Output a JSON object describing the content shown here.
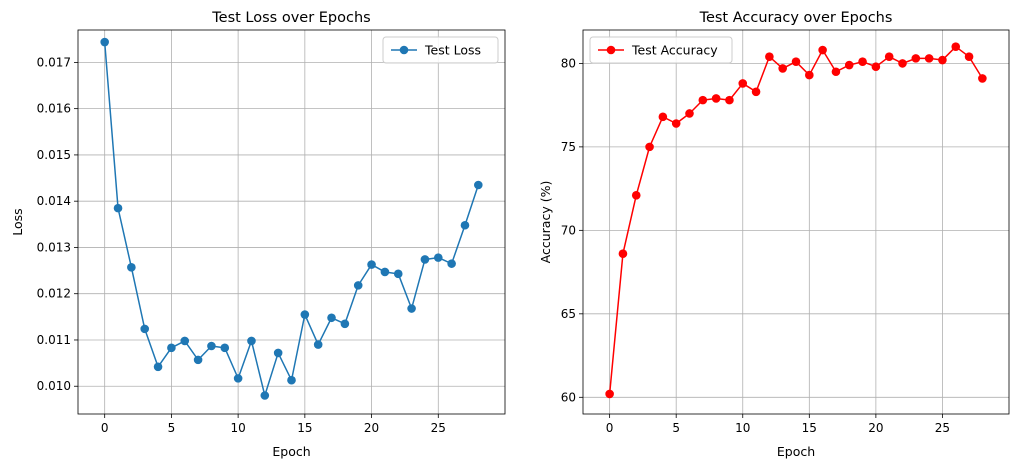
{
  "chart_data": [
    {
      "type": "line",
      "title": "Test Loss over Epochs",
      "xlabel": "Epoch",
      "ylabel": "Loss",
      "xlim": [
        -2,
        30
      ],
      "ylim": [
        0.0094,
        0.0177
      ],
      "xticks": [
        0,
        5,
        10,
        15,
        20,
        25
      ],
      "yticks": [
        0.01,
        0.011,
        0.012,
        0.013,
        0.014,
        0.015,
        0.016,
        0.017
      ],
      "ytick_labels": [
        "0.010",
        "0.011",
        "0.012",
        "0.013",
        "0.014",
        "0.015",
        "0.016",
        "0.017"
      ],
      "grid": true,
      "legend_position": "top-right",
      "series": [
        {
          "name": "Test Loss",
          "color": "#1f77b4",
          "marker": "circle",
          "x": [
            0,
            1,
            2,
            3,
            4,
            5,
            6,
            7,
            8,
            9,
            10,
            11,
            12,
            13,
            14,
            15,
            16,
            17,
            18,
            19,
            20,
            21,
            22,
            23,
            24,
            25,
            26,
            27,
            28
          ],
          "values": [
            0.01744,
            0.01385,
            0.01257,
            0.01124,
            0.01042,
            0.01083,
            0.01098,
            0.01057,
            0.01087,
            0.01083,
            0.01017,
            0.01098,
            0.0098,
            0.01072,
            0.01013,
            0.01155,
            0.0109,
            0.01148,
            0.01135,
            0.01218,
            0.01263,
            0.01247,
            0.01243,
            0.01168,
            0.01274,
            0.01278,
            0.01265,
            0.01348,
            0.01435
          ]
        }
      ]
    },
    {
      "type": "line",
      "title": "Test Accuracy over Epochs",
      "xlabel": "Epoch",
      "ylabel": "Accuracy (%)",
      "xlim": [
        -2,
        30
      ],
      "ylim": [
        59.0,
        82.0
      ],
      "xticks": [
        0,
        5,
        10,
        15,
        20,
        25
      ],
      "yticks": [
        60,
        65,
        70,
        75,
        80
      ],
      "ytick_labels": [
        "60",
        "65",
        "70",
        "75",
        "80"
      ],
      "grid": true,
      "legend_position": "top-left",
      "series": [
        {
          "name": "Test Accuracy",
          "color": "#ff0000",
          "marker": "circle",
          "x": [
            0,
            1,
            2,
            3,
            4,
            5,
            6,
            7,
            8,
            9,
            10,
            11,
            12,
            13,
            14,
            15,
            16,
            17,
            18,
            19,
            20,
            21,
            22,
            23,
            24,
            25,
            26,
            27,
            28
          ],
          "values": [
            60.2,
            68.6,
            72.1,
            75.0,
            76.8,
            76.4,
            77.0,
            77.8,
            77.9,
            77.8,
            78.8,
            78.3,
            80.4,
            79.7,
            80.1,
            79.3,
            80.8,
            79.5,
            79.9,
            80.1,
            79.8,
            80.4,
            80.0,
            80.3,
            80.3,
            80.2,
            81.0,
            80.4,
            79.1
          ]
        }
      ]
    }
  ]
}
